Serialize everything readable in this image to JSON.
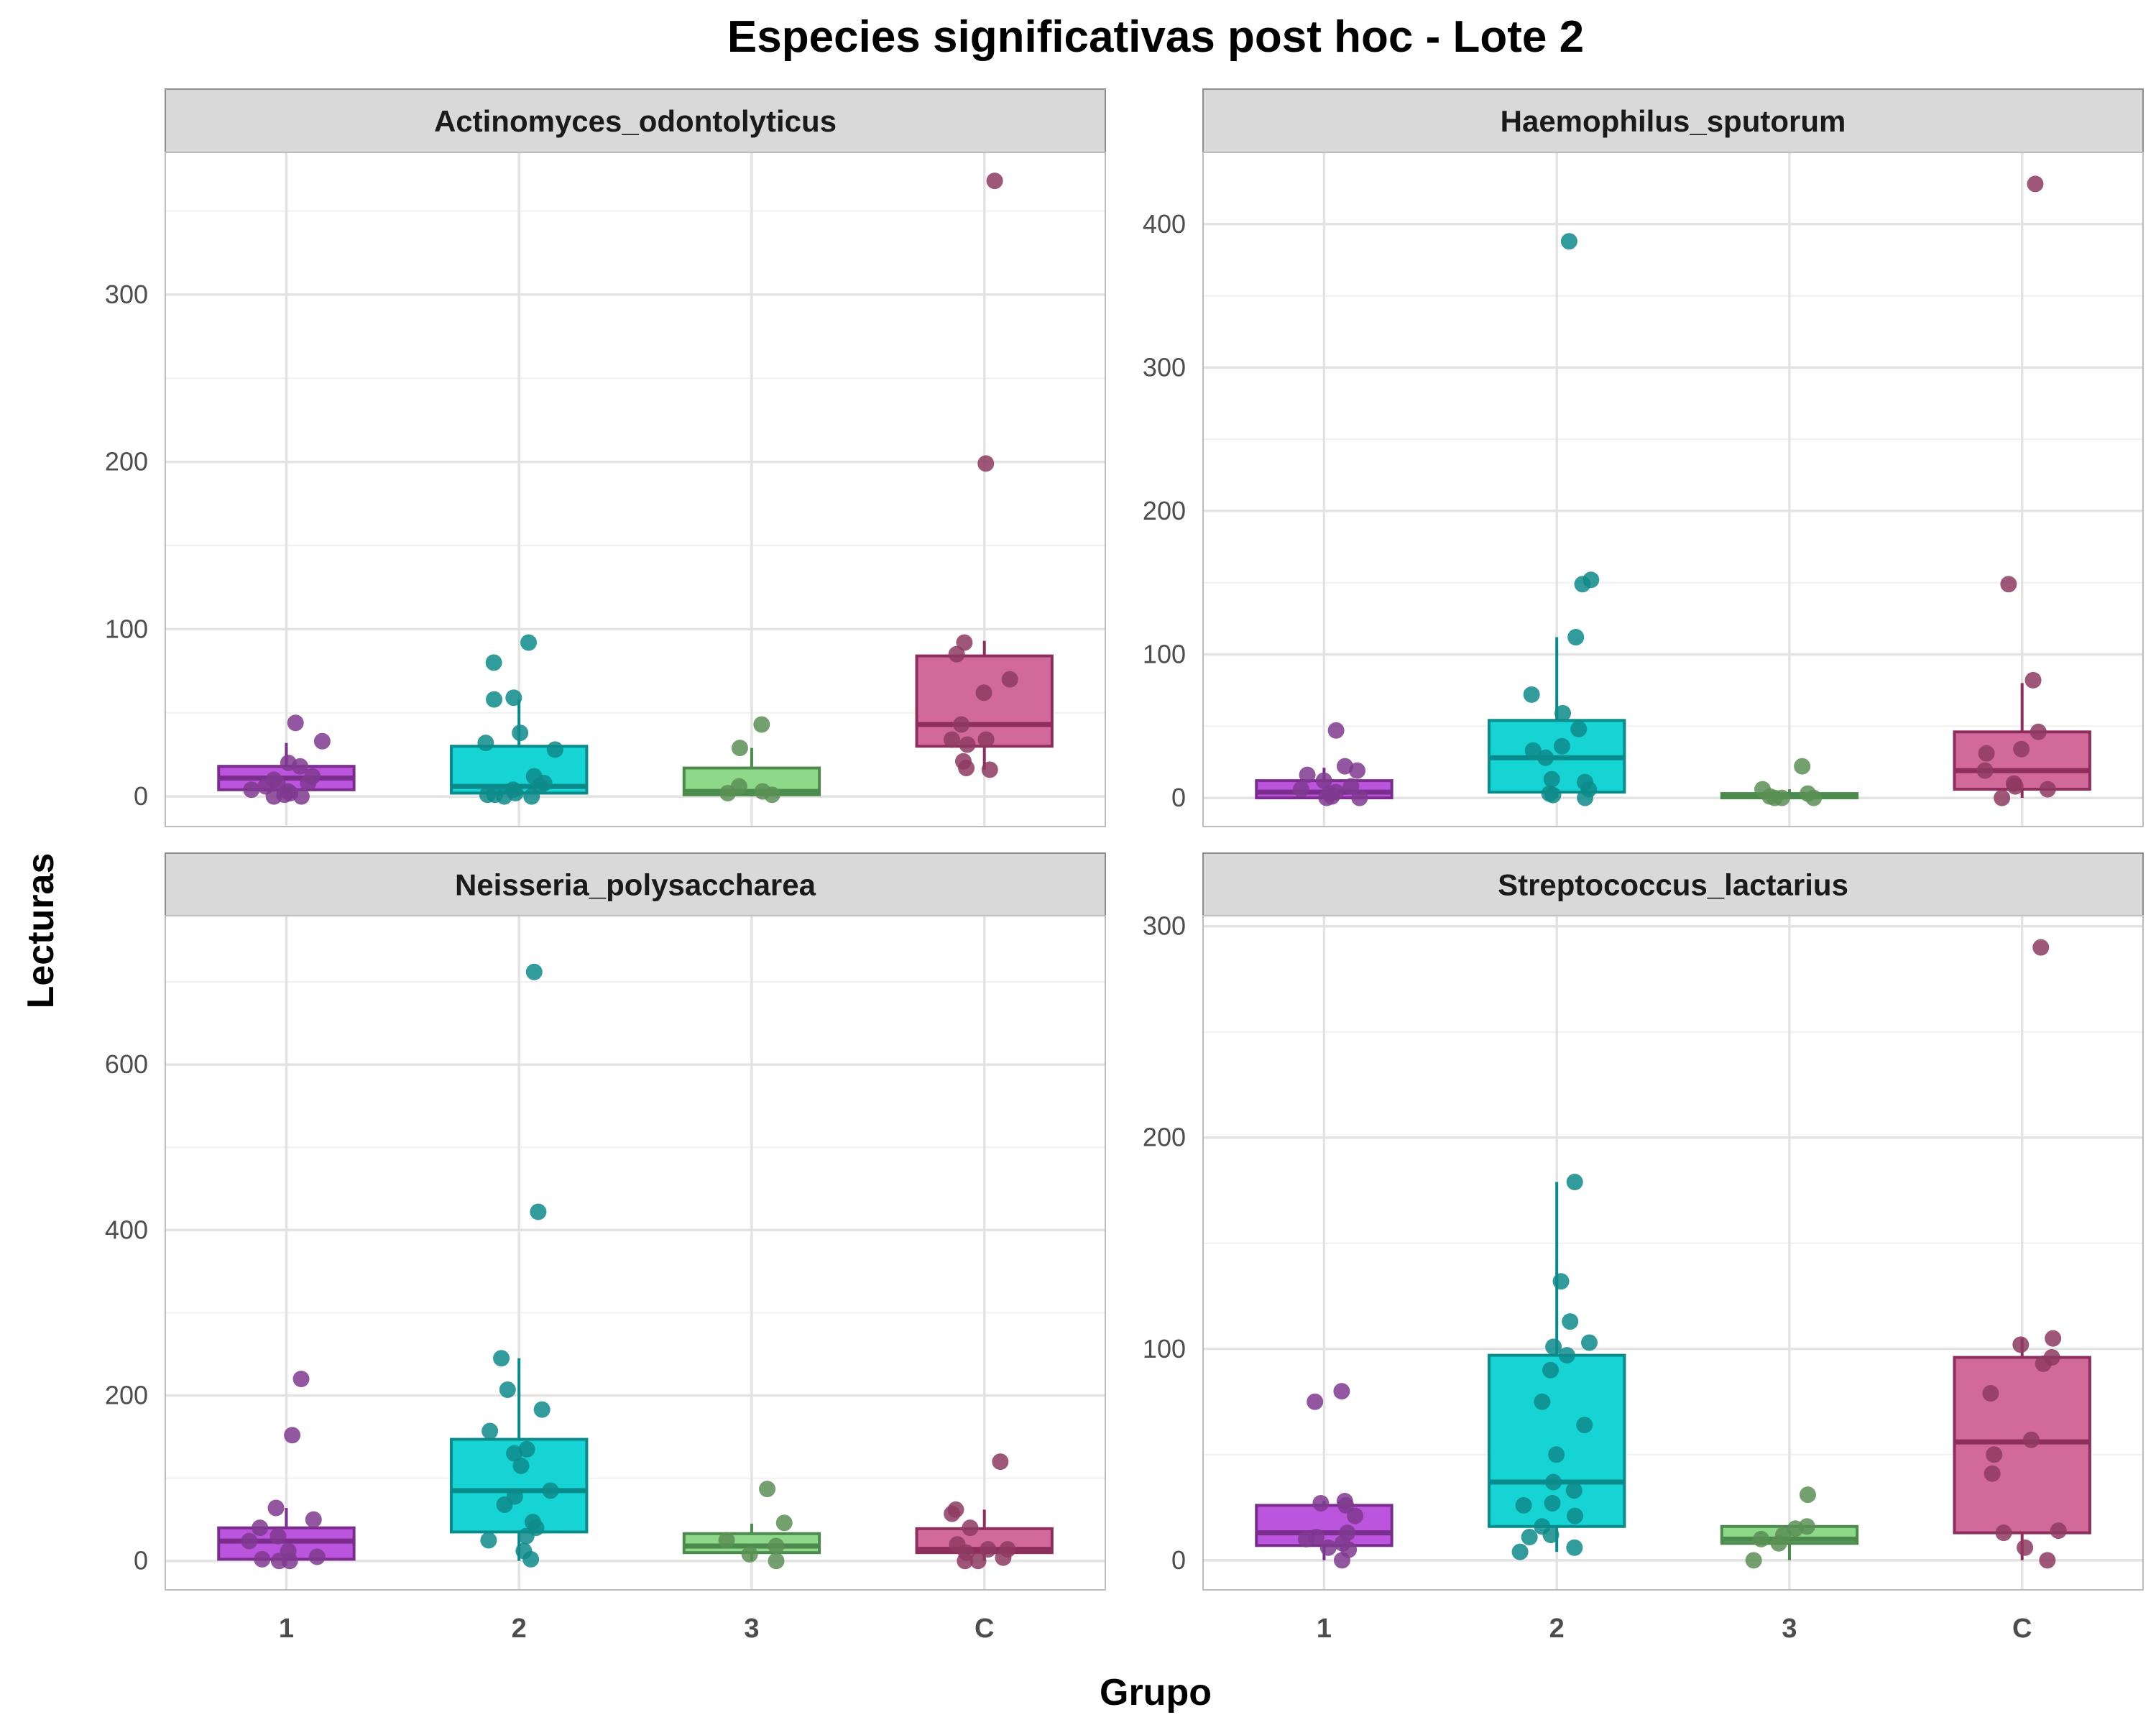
{
  "chart_data": {
    "type": "box",
    "title": "Especies significativas post hoc - Lote 2",
    "xlabel": "Grupo",
    "ylabel": "Lecturas",
    "categories": [
      "1",
      "2",
      "3",
      "C"
    ],
    "grid": true,
    "legend": "none",
    "colors": {
      "1": {
        "fill": "#BB55DD",
        "line": "#7B2D8E",
        "point": "#7F3A8F"
      },
      "2": {
        "fill": "#17D4D4",
        "line": "#0A8B8B",
        "point": "#0E8A8A"
      },
      "3": {
        "fill": "#8ED88A",
        "line": "#4D8A4D",
        "point": "#5A8F55"
      },
      "C": {
        "fill": "#D16A9A",
        "line": "#8E2E5C",
        "point": "#8E3A62"
      }
    },
    "panels": [
      {
        "name": "Actinomyces_odontolyticus",
        "ylim": [
          -18,
          385
        ],
        "yticks": [
          0,
          100,
          200,
          300
        ],
        "groups": {
          "1": {
            "q1": 4,
            "median": 11,
            "q3": 18,
            "wlo": 0,
            "whi": 32,
            "points": [
              44,
              33,
              20,
              18,
              12,
              10,
              8,
              8,
              6,
              4,
              3,
              2,
              1,
              0,
              0
            ]
          },
          "2": {
            "q1": 2,
            "median": 6,
            "q3": 30,
            "wlo": 0,
            "whi": 58,
            "points": [
              92,
              80,
              59,
              58,
              38,
              32,
              28,
              12,
              8,
              6,
              4,
              2,
              1,
              1,
              0,
              0
            ]
          },
          "3": {
            "q1": 1,
            "median": 3,
            "q3": 17,
            "wlo": 0,
            "whi": 29,
            "points": [
              43,
              29,
              6,
              3,
              2,
              1
            ]
          },
          "C": {
            "q1": 30,
            "median": 43,
            "q3": 84,
            "wlo": 16,
            "whi": 93,
            "points": [
              368,
              199,
              92,
              85,
              70,
              62,
              43,
              34,
              34,
              31,
              21,
              17,
              16
            ]
          }
        }
      },
      {
        "name": "Haemophilus_sputorum",
        "ylim": [
          -20,
          450
        ],
        "yticks": [
          0,
          100,
          200,
          300,
          400
        ],
        "groups": {
          "1": {
            "q1": 0,
            "median": 4,
            "q3": 12,
            "wlo": 0,
            "whi": 21,
            "points": [
              47,
              22,
              19,
              16,
              12,
              8,
              6,
              4,
              3,
              1,
              0,
              0
            ]
          },
          "2": {
            "q1": 4,
            "median": 28,
            "q3": 54,
            "wlo": 0,
            "whi": 112,
            "points": [
              388,
              152,
              149,
              112,
              72,
              59,
              48,
              36,
              33,
              28,
              13,
              11,
              6,
              3,
              2,
              0
            ]
          },
          "3": {
            "q1": 0,
            "median": 1,
            "q3": 3,
            "wlo": 0,
            "whi": 6,
            "points": [
              22,
              6,
              3,
              1,
              0,
              0,
              0
            ]
          },
          "C": {
            "q1": 6,
            "median": 19,
            "q3": 46,
            "wlo": 0,
            "whi": 80,
            "points": [
              428,
              149,
              82,
              46,
              34,
              31,
              19,
              10,
              8,
              6,
              0
            ]
          }
        }
      },
      {
        "name": "Neisseria_polysaccharea",
        "ylim": [
          -35,
          780
        ],
        "yticks": [
          0,
          200,
          400,
          600
        ],
        "groups": {
          "1": {
            "q1": 2,
            "median": 24,
            "q3": 40,
            "wlo": 0,
            "whi": 64,
            "points": [
              220,
              152,
              64,
              50,
              40,
              30,
              24,
              12,
              5,
              2,
              0,
              0
            ]
          },
          "2": {
            "q1": 35,
            "median": 85,
            "q3": 147,
            "wlo": 0,
            "whi": 245,
            "points": [
              712,
              422,
              245,
              207,
              183,
              157,
              135,
              130,
              115,
              85,
              78,
              68,
              47,
              40,
              30,
              25,
              12,
              2
            ]
          },
          "3": {
            "q1": 10,
            "median": 18,
            "q3": 33,
            "wlo": 0,
            "whi": 45,
            "points": [
              87,
              46,
              25,
              18,
              8,
              0
            ]
          },
          "C": {
            "q1": 10,
            "median": 14,
            "q3": 39,
            "wlo": 0,
            "whi": 62,
            "points": [
              120,
              62,
              57,
              40,
              20,
              14,
              14,
              10,
              4,
              0,
              0
            ]
          }
        }
      },
      {
        "name": "Streptococcus_lactarius",
        "ylim": [
          -14,
          305
        ],
        "yticks": [
          0,
          100,
          200,
          300
        ],
        "groups": {
          "1": {
            "q1": 7,
            "median": 13,
            "q3": 26,
            "wlo": 0,
            "whi": 28,
            "points": [
              80,
              75,
              28,
              27,
              26,
              21,
              13,
              11,
              10,
              8,
              6,
              5,
              0
            ]
          },
          "2": {
            "q1": 16,
            "median": 37,
            "q3": 97,
            "wlo": 4,
            "whi": 179,
            "points": [
              179,
              132,
              113,
              103,
              101,
              97,
              90,
              75,
              64,
              50,
              37,
              33,
              27,
              26,
              21,
              16,
              12,
              11,
              6,
              4
            ]
          },
          "3": {
            "q1": 8,
            "median": 10,
            "q3": 16,
            "wlo": 0,
            "whi": 16,
            "points": [
              31,
              16,
              15,
              12,
              10,
              8,
              0
            ]
          },
          "C": {
            "q1": 13,
            "median": 56,
            "q3": 96,
            "wlo": 0,
            "whi": 105,
            "points": [
              290,
              105,
              102,
              96,
              93,
              79,
              57,
              50,
              41,
              14,
              13,
              6,
              0
            ]
          }
        }
      }
    ]
  }
}
